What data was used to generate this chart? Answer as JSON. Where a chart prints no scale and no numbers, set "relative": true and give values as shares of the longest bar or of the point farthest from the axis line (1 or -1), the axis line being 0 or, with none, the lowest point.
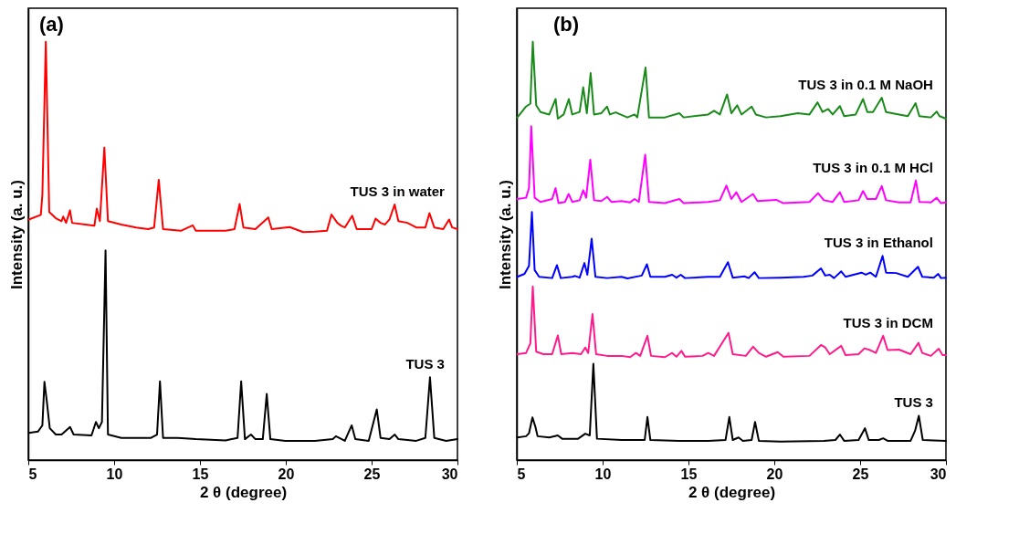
{
  "chart_data": [
    {
      "type": "line",
      "relative": true,
      "annotations": [
        "(a)"
      ],
      "xlabel": "2 θ (degree)",
      "ylabel": "Intensity (a. u.)",
      "xlim": [
        5,
        30
      ],
      "xticks": [
        5,
        10,
        15,
        20,
        25,
        30
      ],
      "tick_labels": "x",
      "legend": false,
      "series": [
        {
          "name": "TUS 3 in water",
          "color": "#ff0000",
          "x": [
            5.03,
            5.73,
            5.82,
            6.02,
            6.22,
            6.6,
            6.94,
            7.03,
            7.2,
            7.43,
            7.55,
            8.33,
            8.85,
            8.99,
            9.17,
            9.43,
            9.64,
            10.42,
            11.28,
            11.98,
            12.33,
            12.6,
            12.85,
            13.89,
            14.58,
            14.76,
            16.49,
            17.01,
            17.31,
            17.53,
            18.23,
            18.98,
            19.18,
            20.23,
            21.01,
            21.7,
            22.4,
            22.66,
            23.0,
            23.23,
            23.44,
            23.87,
            24.13,
            25.0,
            25.23,
            25.52,
            25.78,
            26.04,
            26.34,
            26.56,
            27.08,
            27.6,
            28.13,
            28.37,
            28.65,
            29.17,
            29.51,
            29.69,
            30.0
          ],
          "values": [
            0.575,
            0.586,
            0.635,
            1.0,
            0.593,
            0.578,
            0.571,
            0.582,
            0.567,
            0.597,
            0.567,
            0.563,
            0.56,
            0.601,
            0.571,
            0.747,
            0.571,
            0.563,
            0.556,
            0.552,
            0.556,
            0.67,
            0.552,
            0.548,
            0.561,
            0.548,
            0.548,
            0.552,
            0.612,
            0.556,
            0.552,
            0.58,
            0.552,
            0.557,
            0.545,
            0.546,
            0.548,
            0.587,
            0.567,
            0.56,
            0.556,
            0.584,
            0.552,
            0.552,
            0.577,
            0.567,
            0.563,
            0.575,
            0.611,
            0.571,
            0.567,
            0.556,
            0.556,
            0.59,
            0.556,
            0.552,
            0.575,
            0.556,
            0.552
          ]
        },
        {
          "name": "TUS 3",
          "color": "#000000",
          "x": [
            5.03,
            5.56,
            5.82,
            5.94,
            6.08,
            6.25,
            6.6,
            6.94,
            7.43,
            7.64,
            8.68,
            8.94,
            9.11,
            9.29,
            9.5,
            9.64,
            10.42,
            12.15,
            12.5,
            12.67,
            12.85,
            13.72,
            14.76,
            16.49,
            17.19,
            17.4,
            17.62,
            17.97,
            18.23,
            18.66,
            18.89,
            19.1,
            19.97,
            21.7,
            22.74,
            22.92,
            23.44,
            23.84,
            24.05,
            24.83,
            25.3,
            25.52,
            26.04,
            26.35,
            26.56,
            27.6,
            28.13,
            28.4,
            28.65,
            29.34,
            30.0
          ],
          "values": [
            0.065,
            0.068,
            0.083,
            0.187,
            0.14,
            0.076,
            0.061,
            0.061,
            0.079,
            0.061,
            0.059,
            0.091,
            0.076,
            0.091,
            0.501,
            0.061,
            0.053,
            0.053,
            0.061,
            0.188,
            0.053,
            0.053,
            0.05,
            0.047,
            0.053,
            0.188,
            0.05,
            0.061,
            0.05,
            0.05,
            0.158,
            0.05,
            0.046,
            0.046,
            0.05,
            0.057,
            0.046,
            0.083,
            0.05,
            0.046,
            0.121,
            0.053,
            0.05,
            0.061,
            0.05,
            0.046,
            0.053,
            0.198,
            0.053,
            0.046,
            0.05
          ]
        }
      ]
    },
    {
      "type": "line",
      "relative": true,
      "annotations": [
        "(b)"
      ],
      "xlabel": "2 θ (degree)",
      "ylabel": "Intensity (a. u.)",
      "xlim": [
        5,
        30
      ],
      "xticks": [
        5,
        10,
        15,
        20,
        25,
        30
      ],
      "tick_labels": "x",
      "legend": false,
      "series": [
        {
          "name": "TUS 3 in 0.1 M NaOH",
          "color": "#1a8a1a",
          "x": [
            5.03,
            5.54,
            5.79,
            5.93,
            6.13,
            6.38,
            6.89,
            7.26,
            7.39,
            7.73,
            8.03,
            8.23,
            8.66,
            8.87,
            9.08,
            9.3,
            9.5,
            9.92,
            10.26,
            10.42,
            10.76,
            11.44,
            11.86,
            12.02,
            12.5,
            12.7,
            13.63,
            14.47,
            14.72,
            16.15,
            16.49,
            16.83,
            17.25,
            17.5,
            17.84,
            18.09,
            18.68,
            18.93,
            19.52,
            20.36,
            21.37,
            22.05,
            22.52,
            22.81,
            23.14,
            23.4,
            23.82,
            24.07,
            24.74,
            25.17,
            25.42,
            25.75,
            26.26,
            26.51,
            27.27,
            27.78,
            28.23,
            28.45,
            29.12,
            29.46,
            29.63,
            30.0
          ],
          "values": [
            0.819,
            0.845,
            0.852,
            1.0,
            0.848,
            0.832,
            0.826,
            0.863,
            0.816,
            0.826,
            0.863,
            0.826,
            0.832,
            0.891,
            0.829,
            0.925,
            0.826,
            0.829,
            0.845,
            0.826,
            0.831,
            0.819,
            0.826,
            0.819,
            0.938,
            0.819,
            0.819,
            0.829,
            0.819,
            0.826,
            0.835,
            0.826,
            0.874,
            0.829,
            0.848,
            0.826,
            0.845,
            0.826,
            0.819,
            0.822,
            0.829,
            0.826,
            0.855,
            0.832,
            0.839,
            0.826,
            0.846,
            0.822,
            0.826,
            0.863,
            0.832,
            0.832,
            0.866,
            0.832,
            0.826,
            0.822,
            0.853,
            0.822,
            0.819,
            0.833,
            0.822,
            0.816
          ]
        },
        {
          "name": "TUS 3 in 0.1 M HCl",
          "color": "#ff00ff",
          "x": [
            5.03,
            5.54,
            5.71,
            5.84,
            6.04,
            6.38,
            7.06,
            7.26,
            7.43,
            7.81,
            8.02,
            8.23,
            8.66,
            8.87,
            9.04,
            9.28,
            9.5,
            9.92,
            10.26,
            10.51,
            11.1,
            11.6,
            11.86,
            12.11,
            12.48,
            12.7,
            13.63,
            14.47,
            14.72,
            16.15,
            16.83,
            17.21,
            17.5,
            17.79,
            18.09,
            18.76,
            19.02,
            20.11,
            20.53,
            22.05,
            22.55,
            22.89,
            23.4,
            23.82,
            24.07,
            24.91,
            25.17,
            25.42,
            25.92,
            26.26,
            26.51,
            27.27,
            27.94,
            28.25,
            28.45,
            29.12,
            29.46,
            29.71,
            30.0
          ],
          "values": [
            0.624,
            0.627,
            0.65,
            0.798,
            0.627,
            0.617,
            0.624,
            0.65,
            0.614,
            0.617,
            0.636,
            0.617,
            0.621,
            0.645,
            0.627,
            0.718,
            0.621,
            0.619,
            0.629,
            0.617,
            0.619,
            0.616,
            0.624,
            0.617,
            0.73,
            0.617,
            0.614,
            0.624,
            0.614,
            0.617,
            0.621,
            0.656,
            0.624,
            0.64,
            0.617,
            0.636,
            0.619,
            0.622,
            0.614,
            0.617,
            0.638,
            0.621,
            0.617,
            0.64,
            0.617,
            0.621,
            0.643,
            0.624,
            0.624,
            0.655,
            0.621,
            0.616,
            0.616,
            0.668,
            0.617,
            0.616,
            0.627,
            0.614,
            0.616
          ]
        },
        {
          "name": "TUS 3 in Ethanol",
          "color": "#0000ff",
          "x": [
            5.03,
            5.45,
            5.71,
            5.88,
            6.04,
            6.3,
            7.06,
            7.34,
            7.56,
            8.23,
            8.4,
            8.66,
            8.94,
            9.11,
            9.36,
            9.58,
            10.26,
            11.1,
            11.44,
            12.28,
            12.58,
            12.78,
            13.63,
            14.05,
            14.3,
            14.55,
            14.8,
            16.15,
            16.83,
            17.3,
            17.58,
            18.26,
            18.51,
            18.85,
            19.1,
            20.36,
            21.71,
            22.22,
            22.72,
            22.97,
            23.23,
            23.48,
            23.9,
            24.15,
            25.08,
            25.33,
            25.59,
            25.92,
            26.31,
            26.51,
            27.1,
            27.78,
            28.37,
            28.62,
            29.29,
            29.55,
            29.71,
            30.0
          ],
          "values": [
            0.438,
            0.445,
            0.464,
            0.593,
            0.454,
            0.438,
            0.435,
            0.466,
            0.435,
            0.438,
            0.44,
            0.436,
            0.471,
            0.443,
            0.529,
            0.438,
            0.435,
            0.438,
            0.434,
            0.441,
            0.468,
            0.438,
            0.438,
            0.443,
            0.436,
            0.443,
            0.435,
            0.438,
            0.438,
            0.473,
            0.436,
            0.439,
            0.435,
            0.449,
            0.435,
            0.436,
            0.438,
            0.441,
            0.458,
            0.441,
            0.443,
            0.435,
            0.451,
            0.438,
            0.448,
            0.443,
            0.448,
            0.438,
            0.488,
            0.448,
            0.447,
            0.438,
            0.462,
            0.438,
            0.436,
            0.445,
            0.435,
            0.436
          ]
        },
        {
          "name": "TUS 3 in DCM",
          "color": "#ff1a8c",
          "x": [
            5.03,
            5.54,
            5.79,
            5.93,
            6.13,
            6.55,
            7.06,
            7.39,
            7.59,
            8.23,
            8.74,
            8.99,
            9.16,
            9.41,
            9.62,
            10.26,
            11.1,
            11.6,
            11.94,
            12.19,
            12.61,
            12.82,
            13.63,
            14.05,
            14.3,
            14.59,
            14.8,
            15.82,
            16.15,
            16.49,
            17.33,
            17.58,
            18.34,
            18.76,
            19.1,
            19.52,
            20.2,
            20.53,
            22.05,
            22.72,
            22.97,
            23.23,
            23.9,
            24.15,
            24.91,
            25.25,
            25.5,
            25.67,
            25.92,
            26.34,
            26.6,
            27.27,
            27.94,
            28.4,
            28.62,
            29.12,
            29.58,
            29.8,
            30.0
          ],
          "values": [
            0.253,
            0.256,
            0.279,
            0.415,
            0.259,
            0.253,
            0.253,
            0.298,
            0.253,
            0.256,
            0.253,
            0.269,
            0.256,
            0.349,
            0.253,
            0.249,
            0.249,
            0.246,
            0.256,
            0.249,
            0.297,
            0.249,
            0.246,
            0.256,
            0.247,
            0.261,
            0.247,
            0.249,
            0.256,
            0.249,
            0.304,
            0.253,
            0.249,
            0.271,
            0.256,
            0.247,
            0.258,
            0.247,
            0.249,
            0.275,
            0.269,
            0.253,
            0.273,
            0.251,
            0.253,
            0.267,
            0.264,
            0.261,
            0.256,
            0.297,
            0.263,
            0.264,
            0.253,
            0.28,
            0.256,
            0.249,
            0.266,
            0.251,
            0.251
          ]
        },
        {
          "name": "TUS 3",
          "color": "#000000",
          "x": [
            5.03,
            5.54,
            5.71,
            5.91,
            6.08,
            6.21,
            6.89,
            7.39,
            7.64,
            8.57,
            8.99,
            9.25,
            9.46,
            9.67,
            11.1,
            12.45,
            12.61,
            12.78,
            14.47,
            16.15,
            17.16,
            17.38,
            17.58,
            17.92,
            18.17,
            18.68,
            18.88,
            19.1,
            20.36,
            22.89,
            23.56,
            23.82,
            24.07,
            24.91,
            25.28,
            25.5,
            26.09,
            26.34,
            26.6,
            27.94,
            28.2,
            28.42,
            28.65,
            30.0
          ],
          "values": [
            0.054,
            0.057,
            0.064,
            0.102,
            0.08,
            0.057,
            0.054,
            0.059,
            0.051,
            0.051,
            0.063,
            0.059,
            0.23,
            0.051,
            0.048,
            0.048,
            0.103,
            0.048,
            0.046,
            0.046,
            0.048,
            0.103,
            0.048,
            0.054,
            0.046,
            0.048,
            0.091,
            0.046,
            0.044,
            0.046,
            0.048,
            0.061,
            0.046,
            0.048,
            0.076,
            0.048,
            0.048,
            0.052,
            0.046,
            0.046,
            0.07,
            0.106,
            0.048,
            0.046
          ]
        }
      ]
    }
  ]
}
